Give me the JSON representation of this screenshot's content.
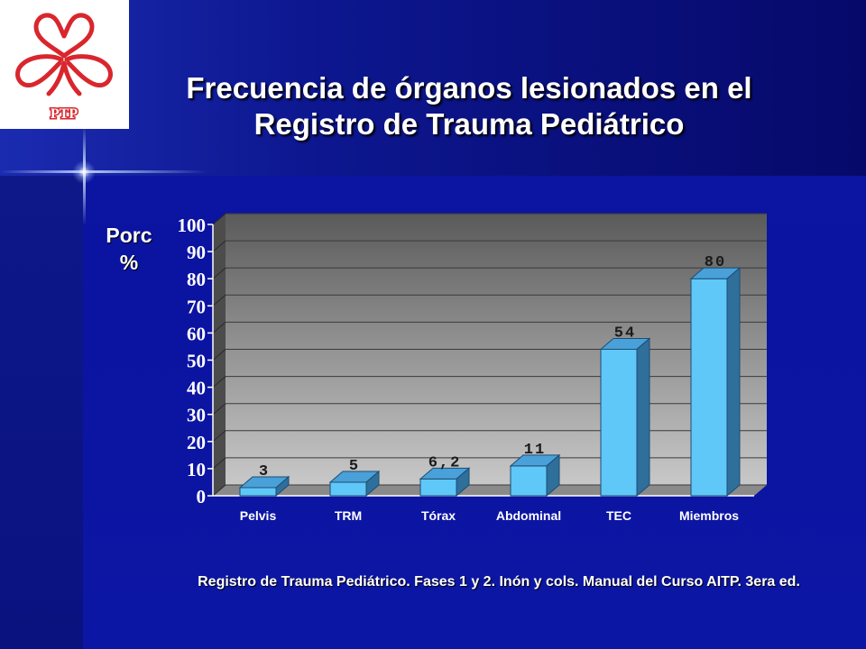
{
  "title": "Frecuencia de órganos lesionados en el Registro de Trauma Pediátrico",
  "logo": {
    "text": "PTP",
    "color": "#d9262d"
  },
  "source_note": "Registro de Trauma Pediátrico. Fases 1 y 2. Inón y cols. Manual del Curso AITP. 3era ed.",
  "colors": {
    "bar_face": "#5fc8f8",
    "bar_top": "#4aa0d8",
    "bar_side": "#2e6f9c",
    "background": "#0b14a0"
  },
  "chart_data": {
    "type": "bar",
    "title": "",
    "ylabel": "Porc %",
    "ylabel_lines": [
      "Porc",
      "%"
    ],
    "xlabel": "",
    "ylim": [
      0,
      100
    ],
    "yticks": [
      0,
      10,
      20,
      30,
      40,
      50,
      60,
      70,
      80,
      90,
      100
    ],
    "categories": [
      "Pelvis",
      "TRM",
      "Tórax",
      "Abdominal",
      "TEC",
      "Miembros"
    ],
    "values": [
      3,
      5,
      6.2,
      11,
      54,
      80
    ],
    "value_labels": [
      "3",
      "5",
      "6,2",
      "11",
      "54",
      "80"
    ],
    "grid": true,
    "legend": false,
    "style": "3d-column"
  }
}
